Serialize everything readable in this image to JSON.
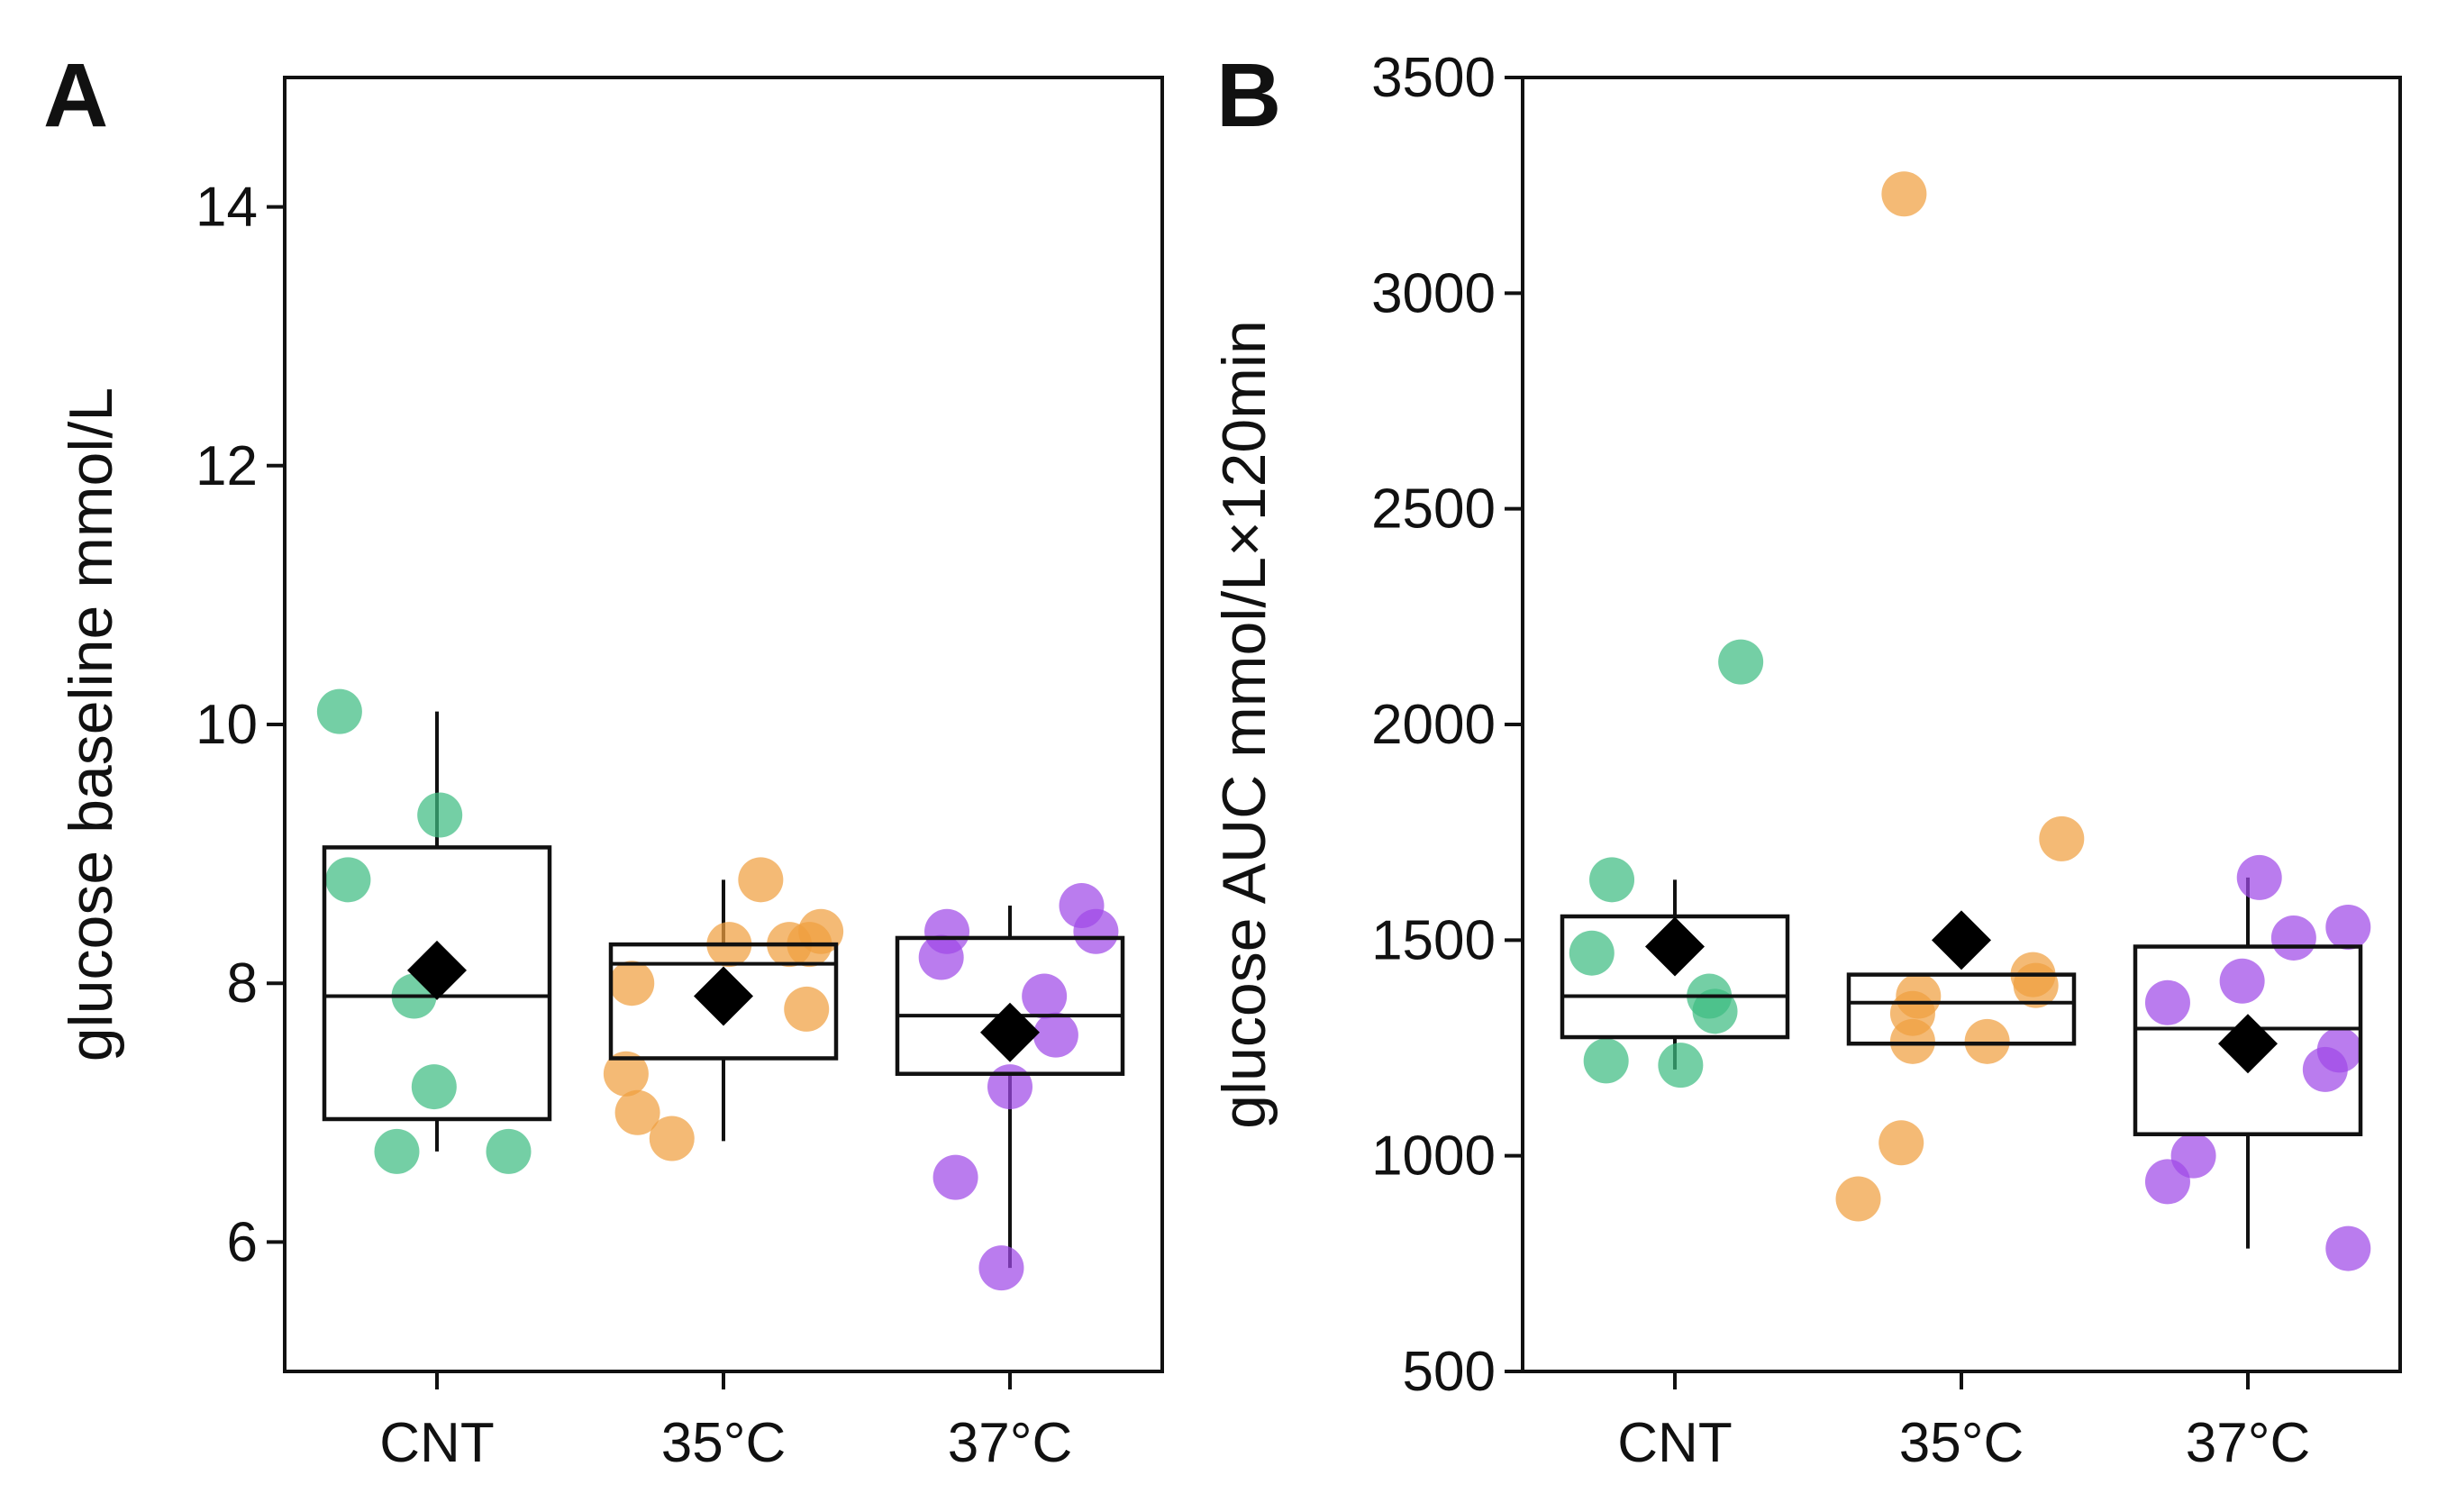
{
  "chart_data": [
    {
      "type": "box",
      "panel_label": "A",
      "ylabel": "glucose baseline mmol/L",
      "xlabel": "",
      "ylim": [
        5,
        15
      ],
      "yticks": [
        6,
        8,
        10,
        12,
        14
      ],
      "categories": [
        "CNT",
        "35°C",
        "37°C"
      ],
      "colors": [
        "#3ebd82",
        "#f0a040",
        "#a04ae8"
      ],
      "groups": [
        {
          "name": "CNT",
          "box": {
            "q1": 6.95,
            "median": 7.9,
            "q3": 9.05,
            "whisker_low": 6.7,
            "whisker_high": 10.1
          },
          "mean": 8.1,
          "points": [
            {
              "jitter": -0.34,
              "y": 10.1
            },
            {
              "jitter": -0.31,
              "y": 8.8
            },
            {
              "jitter": 0.01,
              "y": 9.3
            },
            {
              "jitter": -0.08,
              "y": 7.9
            },
            {
              "jitter": -0.01,
              "y": 7.2
            },
            {
              "jitter": -0.14,
              "y": 6.7
            },
            {
              "jitter": 0.25,
              "y": 6.7
            }
          ]
        },
        {
          "name": "35°C",
          "box": {
            "q1": 7.42,
            "median": 8.15,
            "q3": 8.3,
            "whisker_low": 6.78,
            "whisker_high": 8.8
          },
          "mean": 7.9,
          "points": [
            {
              "jitter": 0.13,
              "y": 8.8
            },
            {
              "jitter": 0.34,
              "y": 8.4
            },
            {
              "jitter": 0.02,
              "y": 8.3
            },
            {
              "jitter": 0.23,
              "y": 8.3
            },
            {
              "jitter": 0.3,
              "y": 8.3
            },
            {
              "jitter": -0.32,
              "y": 8.0
            },
            {
              "jitter": 0.29,
              "y": 7.8
            },
            {
              "jitter": -0.34,
              "y": 7.3
            },
            {
              "jitter": -0.3,
              "y": 7.0
            },
            {
              "jitter": -0.18,
              "y": 6.8
            }
          ]
        },
        {
          "name": "37°C",
          "box": {
            "q1": 7.3,
            "median": 7.75,
            "q3": 8.35,
            "whisker_low": 5.8,
            "whisker_high": 8.6
          },
          "mean": 7.62,
          "points": [
            {
              "jitter": 0.25,
              "y": 8.6
            },
            {
              "jitter": -0.22,
              "y": 8.4
            },
            {
              "jitter": 0.3,
              "y": 8.4
            },
            {
              "jitter": -0.24,
              "y": 8.2
            },
            {
              "jitter": 0.12,
              "y": 7.9
            },
            {
              "jitter": 0.16,
              "y": 7.6
            },
            {
              "jitter": 0.0,
              "y": 7.2
            },
            {
              "jitter": -0.19,
              "y": 6.5
            },
            {
              "jitter": -0.03,
              "y": 5.8
            }
          ]
        }
      ]
    },
    {
      "type": "box",
      "panel_label": "B",
      "ylabel": "glucose AUC mmol/L×120min",
      "xlabel": "",
      "ylim": [
        500,
        3500
      ],
      "yticks": [
        500,
        1000,
        1500,
        2000,
        2500,
        3000,
        3500
      ],
      "categories": [
        "CNT",
        "35°C",
        "37°C"
      ],
      "colors": [
        "#3ebd82",
        "#f0a040",
        "#a04ae8"
      ],
      "groups": [
        {
          "name": "CNT",
          "box": {
            "q1": 1275,
            "median": 1370,
            "q3": 1555,
            "whisker_low": 1200,
            "whisker_high": 1640
          },
          "mean": 1485,
          "points": [
            {
              "jitter": 0.23,
              "y": 2145
            },
            {
              "jitter": -0.22,
              "y": 1640
            },
            {
              "jitter": -0.29,
              "y": 1470
            },
            {
              "jitter": 0.12,
              "y": 1370
            },
            {
              "jitter": 0.14,
              "y": 1335
            },
            {
              "jitter": -0.24,
              "y": 1220
            },
            {
              "jitter": 0.02,
              "y": 1210
            }
          ]
        },
        {
          "name": "35°C",
          "box": {
            "q1": 1260,
            "median": 1355,
            "q3": 1420,
            "whisker_low": 1260,
            "whisker_high": 1420
          },
          "mean": 1500,
          "points": [
            {
              "jitter": -0.2,
              "y": 3230
            },
            {
              "jitter": 0.35,
              "y": 1735
            },
            {
              "jitter": 0.25,
              "y": 1420
            },
            {
              "jitter": 0.26,
              "y": 1395
            },
            {
              "jitter": -0.15,
              "y": 1370
            },
            {
              "jitter": -0.17,
              "y": 1330
            },
            {
              "jitter": -0.17,
              "y": 1265
            },
            {
              "jitter": 0.09,
              "y": 1265
            },
            {
              "jitter": -0.21,
              "y": 1030
            },
            {
              "jitter": -0.36,
              "y": 900
            }
          ]
        },
        {
          "name": "37°C",
          "box": {
            "q1": 1050,
            "median": 1295,
            "q3": 1485,
            "whisker_low": 785,
            "whisker_high": 1645
          },
          "mean": 1260,
          "points": [
            {
              "jitter": 0.04,
              "y": 1645
            },
            {
              "jitter": 0.35,
              "y": 1530
            },
            {
              "jitter": 0.16,
              "y": 1505
            },
            {
              "jitter": -0.02,
              "y": 1405
            },
            {
              "jitter": -0.28,
              "y": 1355
            },
            {
              "jitter": 0.32,
              "y": 1245
            },
            {
              "jitter": 0.27,
              "y": 1200
            },
            {
              "jitter": -0.19,
              "y": 1000
            },
            {
              "jitter": -0.28,
              "y": 940
            },
            {
              "jitter": 0.35,
              "y": 785
            }
          ]
        }
      ]
    }
  ]
}
